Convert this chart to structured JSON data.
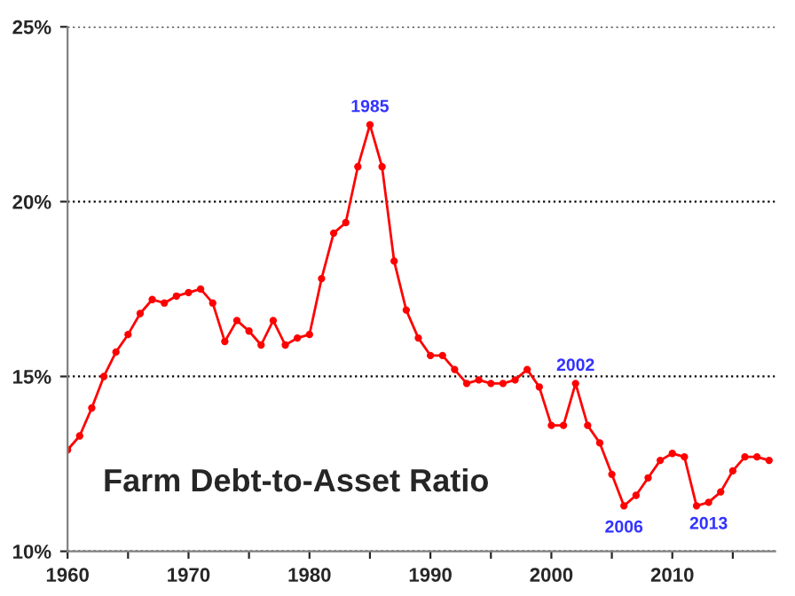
{
  "chart_data": {
    "type": "line",
    "title": "Farm Debt-to-Asset Ratio",
    "x": [
      1960,
      1961,
      1962,
      1963,
      1964,
      1965,
      1966,
      1967,
      1968,
      1969,
      1970,
      1971,
      1972,
      1973,
      1974,
      1975,
      1976,
      1977,
      1978,
      1979,
      1980,
      1981,
      1982,
      1983,
      1984,
      1985,
      1986,
      1987,
      1988,
      1989,
      1990,
      1991,
      1992,
      1993,
      1994,
      1995,
      1996,
      1997,
      1998,
      1999,
      2000,
      2001,
      2002,
      2003,
      2004,
      2005,
      2006,
      2007,
      2008,
      2009,
      2010,
      2011,
      2012,
      2013,
      2014,
      2015,
      2016,
      2017,
      2018
    ],
    "series": [
      {
        "color": "#ff0000",
        "values": [
          12.9,
          13.3,
          14.1,
          15.0,
          15.7,
          16.2,
          16.8,
          17.2,
          17.1,
          17.3,
          17.4,
          17.5,
          17.1,
          16.0,
          16.6,
          16.3,
          15.9,
          16.6,
          15.9,
          16.1,
          16.2,
          17.8,
          19.1,
          19.4,
          21.0,
          22.2,
          21.0,
          18.3,
          16.9,
          16.1,
          15.6,
          15.6,
          15.2,
          14.8,
          14.9,
          14.8,
          14.8,
          14.9,
          15.2,
          14.7,
          13.6,
          13.6,
          14.8,
          13.6,
          13.1,
          12.2,
          11.3,
          11.6,
          12.1,
          12.6,
          12.8,
          12.7,
          11.3,
          11.4,
          11.7,
          12.3,
          12.7,
          12.7,
          12.6
        ]
      }
    ],
    "annotations": [
      {
        "text": "1985",
        "x": 1985,
        "y": 22.2
      },
      {
        "text": "2002",
        "x": 2002,
        "y": 14.8
      },
      {
        "text": "2006",
        "x": 2006,
        "y": 11.3
      },
      {
        "text": "2013",
        "x": 2013,
        "y": 11.4
      }
    ],
    "xlim": [
      1960,
      2018.5
    ],
    "xticks": [
      1960,
      {
        "value": 1965,
        "label": null
      },
      1970,
      {
        "value": 1975,
        "label": null
      },
      1980,
      {
        "value": 1985,
        "label": null
      },
      1990,
      {
        "value": 1995,
        "label": null
      },
      2000,
      {
        "value": 2005,
        "label": null
      },
      2010,
      {
        "value": 2015,
        "label": null
      }
    ],
    "ylim": [
      10,
      25
    ],
    "yticks": [
      {
        "value": 10,
        "label": "10%"
      },
      {
        "value": 15,
        "label": "15%"
      },
      {
        "value": 20,
        "label": "20%"
      },
      {
        "value": 25,
        "label": "25%"
      }
    ],
    "grid": "y",
    "legend": false,
    "marker": "circle",
    "line_style": "solid"
  }
}
